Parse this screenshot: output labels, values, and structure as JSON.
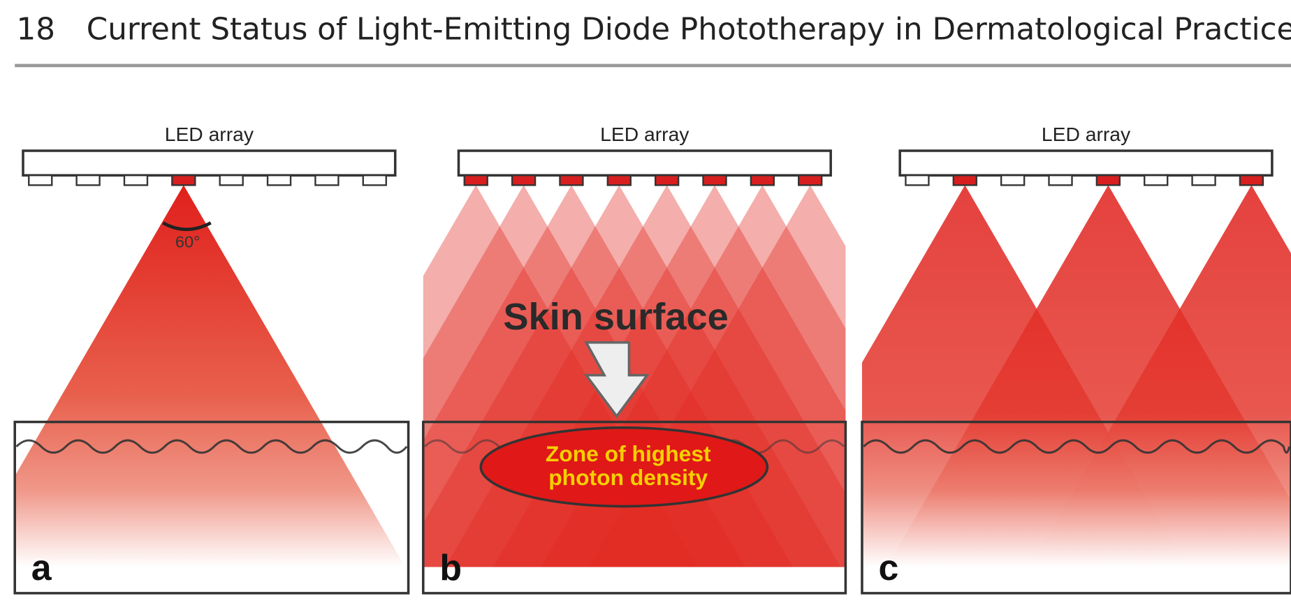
{
  "header": {
    "page_number": "18",
    "title": "Current Status of Light-Emitting Diode Phototherapy in Dermatological Practice"
  },
  "figure": {
    "panels": [
      {
        "label": "a",
        "led_label": "LED array",
        "angle_label": "60°"
      },
      {
        "label": "b",
        "led_label": "LED array",
        "callout": "Skin surface",
        "zone_label": [
          "Zone of highest",
          "photon density"
        ]
      },
      {
        "label": "c",
        "led_label": "LED array"
      }
    ]
  }
}
